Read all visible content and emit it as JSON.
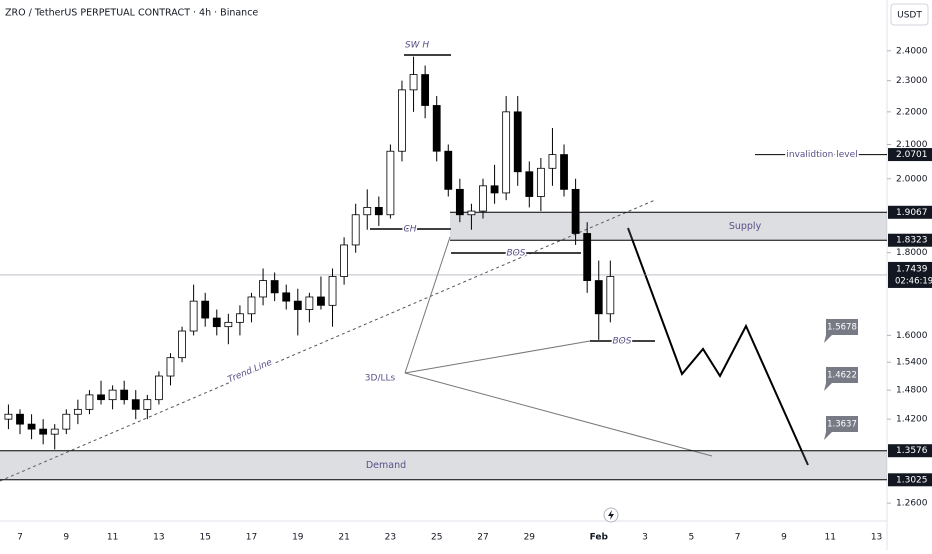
{
  "chart_data": {
    "type": "candlestick",
    "title": "ZRO / TetherUS PERPETUAL CONTRACT · 4h · Binance",
    "currency": "USDT",
    "log_scale": true,
    "ylim": [
      1.23,
      2.58
    ],
    "yticks": [
      {
        "value": 2.4,
        "label": "2.4000"
      },
      {
        "value": 2.3,
        "label": "2.3000"
      },
      {
        "value": 2.2,
        "label": "2.2000"
      },
      {
        "value": 2.1,
        "label": "2.1000"
      },
      {
        "value": 2.0,
        "label": "2.0000"
      },
      {
        "value": 1.8,
        "label": "1.8000"
      },
      {
        "value": 1.6,
        "label": "1.6000"
      },
      {
        "value": 1.54,
        "label": "1.5400"
      },
      {
        "value": 1.48,
        "label": "1.4800"
      },
      {
        "value": 1.42,
        "label": "1.4200"
      },
      {
        "value": 1.26,
        "label": "1.2600"
      }
    ],
    "x_labels": [
      "7",
      "9",
      "11",
      "13",
      "15",
      "17",
      "19",
      "21",
      "23",
      "25",
      "27",
      "29",
      "Feb",
      "3",
      "5",
      "7",
      "9",
      "11",
      "13"
    ],
    "up_color": "#ffffff",
    "down_color": "#000000",
    "open": [
      1.42,
      1.43,
      1.41,
      1.4,
      1.39,
      1.4,
      1.43,
      1.44,
      1.47,
      1.46,
      1.48,
      1.46,
      1.44,
      1.46,
      1.51,
      1.55,
      1.61,
      1.68,
      1.64,
      1.62,
      1.63,
      1.65,
      1.69,
      1.73,
      1.7,
      1.68,
      1.66,
      1.69,
      1.67,
      1.74,
      1.82,
      1.9,
      1.92,
      1.9,
      2.08,
      2.27,
      2.32,
      2.22,
      2.08,
      1.97,
      1.9,
      1.91,
      1.98,
      1.96,
      2.2,
      2.02,
      1.95,
      2.03,
      2.07,
      1.97,
      1.85,
      1.73,
      1.65
    ],
    "high": [
      1.45,
      1.44,
      1.43,
      1.42,
      1.41,
      1.44,
      1.46,
      1.48,
      1.5,
      1.49,
      1.5,
      1.48,
      1.47,
      1.52,
      1.56,
      1.62,
      1.72,
      1.7,
      1.66,
      1.65,
      1.67,
      1.7,
      1.76,
      1.75,
      1.72,
      1.71,
      1.7,
      1.74,
      1.76,
      1.84,
      1.93,
      1.97,
      1.95,
      2.1,
      2.3,
      2.38,
      2.35,
      2.25,
      2.1,
      2.0,
      1.93,
      2.0,
      2.04,
      2.25,
      2.25,
      2.05,
      2.06,
      2.15,
      2.1,
      2.0,
      1.88,
      1.78,
      1.78
    ],
    "low": [
      1.4,
      1.39,
      1.38,
      1.37,
      1.36,
      1.39,
      1.41,
      1.43,
      1.45,
      1.44,
      1.45,
      1.42,
      1.42,
      1.45,
      1.49,
      1.54,
      1.6,
      1.62,
      1.6,
      1.58,
      1.6,
      1.63,
      1.67,
      1.68,
      1.66,
      1.6,
      1.63,
      1.66,
      1.62,
      1.72,
      1.8,
      1.86,
      1.87,
      1.89,
      2.05,
      2.2,
      2.18,
      2.05,
      1.95,
      1.88,
      1.86,
      1.89,
      1.93,
      1.94,
      1.98,
      1.92,
      1.91,
      1.98,
      1.95,
      1.82,
      1.7,
      1.59,
      1.63
    ],
    "close": [
      1.43,
      1.41,
      1.4,
      1.39,
      1.4,
      1.43,
      1.44,
      1.47,
      1.46,
      1.48,
      1.46,
      1.44,
      1.46,
      1.51,
      1.55,
      1.61,
      1.68,
      1.64,
      1.62,
      1.63,
      1.65,
      1.69,
      1.73,
      1.7,
      1.68,
      1.66,
      1.69,
      1.67,
      1.74,
      1.82,
      1.9,
      1.92,
      1.9,
      2.08,
      2.27,
      2.32,
      2.22,
      2.08,
      1.97,
      1.9,
      1.91,
      1.98,
      1.96,
      2.2,
      2.02,
      1.95,
      2.03,
      2.07,
      1.97,
      1.85,
      1.73,
      1.65,
      1.74
    ],
    "current": {
      "value": 1.7439,
      "countdown": "02:46:19"
    },
    "invalidation": {
      "label": "invalidtion level",
      "value": 2.0701
    },
    "supply": {
      "label": "Supply",
      "top": 1.9067,
      "bottom": 1.8323
    },
    "demand": {
      "label": "Demand",
      "top": 1.3576,
      "bottom": 1.3025
    },
    "annotations": [
      "SW H",
      "CH",
      "BOS",
      "BOS",
      "3D/LLs",
      "Trend Line"
    ],
    "targets": [
      1.5678,
      1.4622,
      1.3637
    ]
  }
}
